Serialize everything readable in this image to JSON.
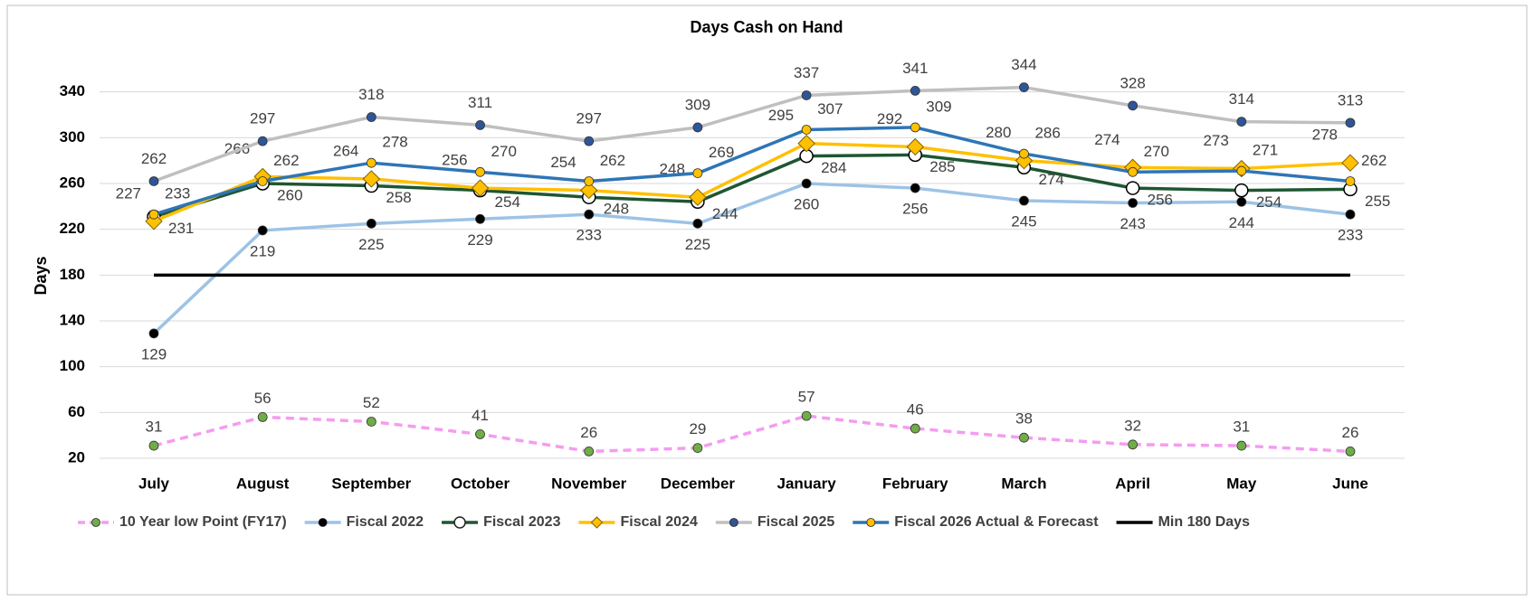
{
  "chart_data": {
    "type": "line",
    "title": "Days Cash on Hand",
    "y_label": "Days",
    "categories": [
      "July",
      "August",
      "September",
      "October",
      "November",
      "December",
      "January",
      "February",
      "March",
      "April",
      "May",
      "June"
    ],
    "ylim": [
      20,
      380
    ],
    "yticks": [
      20,
      60,
      100,
      140,
      180,
      220,
      260,
      300,
      340
    ],
    "grid": true,
    "legend": "bottom",
    "series": [
      {
        "name": "10 Year low Point (FY17)",
        "color": "#f59cf0",
        "dashed": true,
        "marker": "circle",
        "marker_color": "#70ad47",
        "data_labels": true,
        "values": [
          31,
          56,
          52,
          41,
          26,
          29,
          57,
          46,
          38,
          32,
          31,
          26
        ]
      },
      {
        "name": "Fiscal 2022",
        "color": "#9dc3e6",
        "dashed": false,
        "marker": "circle",
        "marker_color": "#000000",
        "data_labels": true,
        "values": [
          129,
          219,
          225,
          229,
          233,
          225,
          260,
          256,
          245,
          243,
          244,
          233
        ]
      },
      {
        "name": "Fiscal 2023",
        "color": "#1e5631",
        "dashed": false,
        "marker": "circle-large",
        "marker_color": "#ffffff",
        "data_labels": true,
        "values": [
          231,
          260,
          258,
          254,
          248,
          244,
          284,
          285,
          274,
          256,
          254,
          255
        ]
      },
      {
        "name": "Fiscal 2024",
        "color": "#ffc000",
        "dashed": false,
        "marker": "diamond",
        "marker_color": "#ffc000",
        "data_labels": true,
        "values": [
          227,
          266,
          264,
          256,
          254,
          248,
          295,
          292,
          280,
          274,
          273,
          278
        ]
      },
      {
        "name": "Fiscal 2025",
        "color": "#bfbfbf",
        "dashed": false,
        "marker": "circle",
        "marker_color": "#2f5597",
        "data_labels": true,
        "values": [
          262,
          297,
          318,
          311,
          297,
          309,
          337,
          341,
          344,
          328,
          314,
          313
        ]
      },
      {
        "name": "Fiscal 2026 Actual & Forecast",
        "color": "#2e75b6",
        "dashed": false,
        "marker": "circle",
        "marker_color": "#ffc000",
        "data_labels": true,
        "values": [
          233,
          262,
          278,
          270,
          262,
          269,
          307,
          309,
          286,
          270,
          271,
          262
        ]
      },
      {
        "name": "Min 180 Days",
        "color": "#000000",
        "dashed": false,
        "marker": "none",
        "marker_color": "#000000",
        "data_labels": false,
        "values": [
          180,
          180,
          180,
          180,
          180,
          180,
          180,
          180,
          180,
          180,
          180,
          180
        ]
      }
    ]
  }
}
